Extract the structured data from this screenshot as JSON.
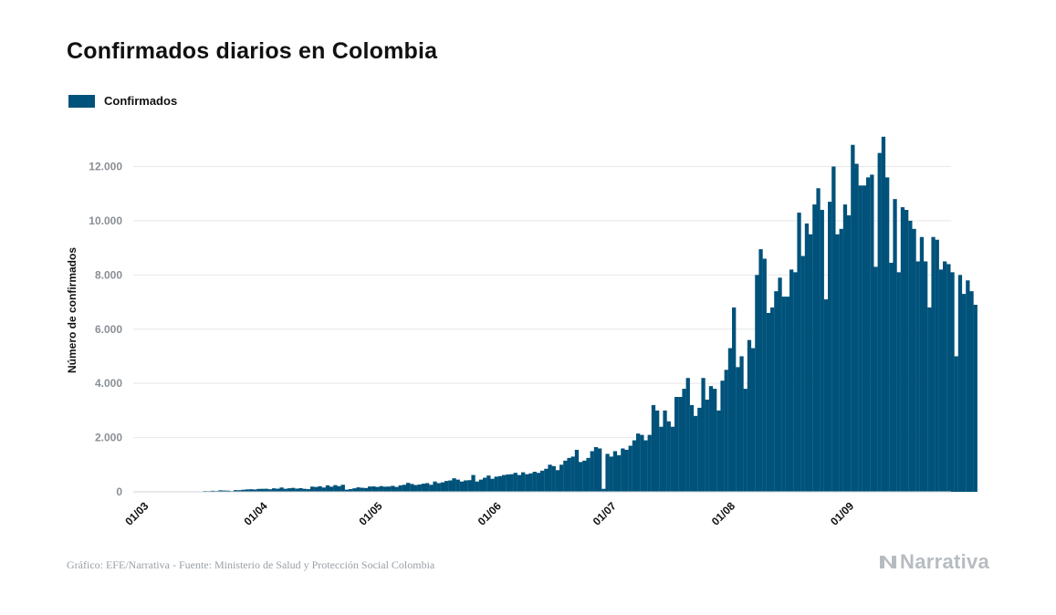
{
  "title": "Confirmados diarios en Colombia",
  "legend": {
    "label": "Confirmados",
    "color": "#00527a"
  },
  "ylabel": "Número de confirmados",
  "footer": "Gráfico: EFE/Narrativa - Fuente: Ministerio de Salud y Protección Social Colombia",
  "brand": {
    "name": "Narrativa",
    "icon": "narrativa-logo-icon"
  },
  "chart_data": {
    "type": "bar",
    "series": [
      {
        "name": "Confirmados",
        "color": "#00527a"
      }
    ],
    "ylim": [
      0,
      13700
    ],
    "yticks": [
      0,
      2000,
      4000,
      6000,
      8000,
      10000,
      12000
    ],
    "ytick_labels": [
      "0",
      "2.000",
      "4.000",
      "6.000",
      "8.000",
      "10.000",
      "12.000"
    ],
    "grid": true,
    "x_start": "2020-03-01",
    "xtick_labels": [
      "01/03",
      "01/04",
      "01/05",
      "01/06",
      "01/07",
      "01/08",
      "01/09"
    ],
    "xtick_dates": [
      "2020-03-01",
      "2020-04-01",
      "2020-05-01",
      "2020-06-01",
      "2020-07-01",
      "2020-08-01",
      "2020-09-01"
    ],
    "values": [
      0,
      0,
      0,
      0,
      0,
      1,
      0,
      2,
      0,
      3,
      3,
      4,
      8,
      10,
      7,
      17,
      15,
      29,
      26,
      38,
      29,
      55,
      48,
      43,
      27,
      63,
      60,
      76,
      90,
      96,
      86,
      107,
      111,
      113,
      94,
      129,
      116,
      160,
      112,
      131,
      145,
      118,
      135,
      110,
      99,
      192,
      179,
      207,
      160,
      240,
      190,
      247,
      210,
      260,
      80,
      100,
      130,
      165,
      150,
      140,
      195,
      200,
      180,
      210,
      190,
      195,
      220,
      180,
      240,
      260,
      330,
      290,
      250,
      270,
      300,
      320,
      260,
      380,
      320,
      350,
      400,
      420,
      500,
      450,
      380,
      420,
      430,
      620,
      380,
      450,
      520,
      600,
      480,
      560,
      580,
      620,
      640,
      650,
      700,
      620,
      720,
      650,
      680,
      740,
      700,
      780,
      850,
      1000,
      950,
      800,
      1000,
      1150,
      1250,
      1300,
      1550,
      1100,
      1150,
      1250,
      1500,
      1650,
      1600,
      110,
      1400,
      1300,
      1500,
      1350,
      1600,
      1550,
      1700,
      1900,
      2150,
      2100,
      1900,
      2100,
      3200,
      3000,
      2400,
      3000,
      2600,
      2400,
      3500,
      3500,
      3800,
      4200,
      3200,
      2800,
      3100,
      4200,
      3400,
      3900,
      3800,
      3000,
      4100,
      4500,
      5300,
      6800,
      4600,
      5000,
      3800,
      5600,
      5300,
      8000,
      8950,
      8600,
      6600,
      6800,
      7400,
      7900,
      7200,
      7200,
      8200,
      8100,
      10300,
      8700,
      9900,
      9500,
      10600,
      11200,
      10400,
      7100,
      10700,
      12000,
      9500,
      9700,
      10600,
      10200,
      12800,
      12100,
      11300,
      11300,
      11600,
      11700,
      8300,
      12500,
      13100,
      11600,
      8450,
      10800,
      8100,
      10500,
      10400,
      10000,
      9700,
      8500,
      9400,
      8500,
      6800,
      9400,
      9300,
      8200,
      8500,
      8400,
      8100,
      5000,
      8000,
      7300,
      7800,
      7400,
      6900
    ]
  }
}
